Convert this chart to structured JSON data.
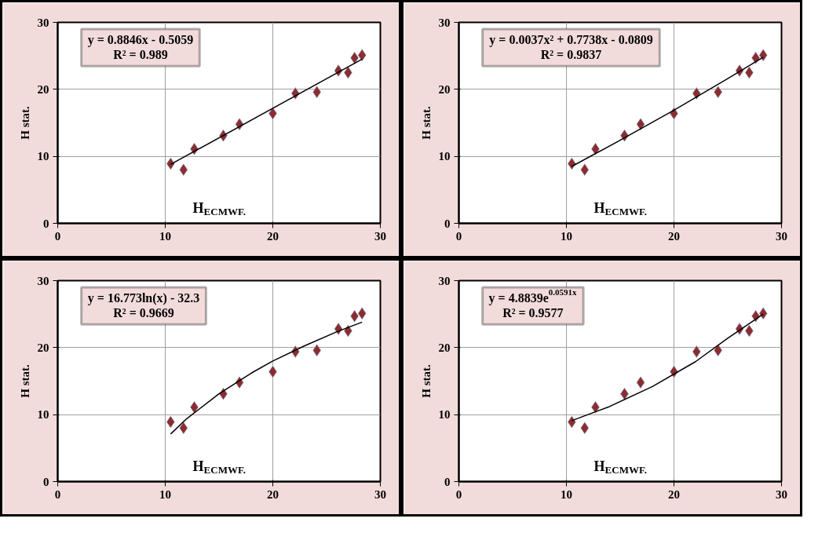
{
  "chart_data": [
    {
      "type": "scatter",
      "xlabel": "H$_{ECMWF.}$",
      "ylabel": "H stat.",
      "xlim": [
        0,
        30
      ],
      "ylim": [
        0,
        30
      ],
      "xticks": [
        0,
        10,
        20,
        30
      ],
      "yticks": [
        0,
        10,
        20,
        30
      ],
      "grid": true,
      "annotations": [
        "y = 0.8846x - 0.5059",
        "R² = 0.989"
      ],
      "series": [
        {
          "marker": "diamond",
          "color": "#8b2d2d",
          "x": [
            10.5,
            11.7,
            12.7,
            15.4,
            16.9,
            20.0,
            22.1,
            24.1,
            26.1,
            27.0,
            27.6,
            28.3
          ],
          "values": [
            8.9,
            8.0,
            11.1,
            13.1,
            14.8,
            16.4,
            19.4,
            19.6,
            22.8,
            22.5,
            24.7,
            25.1
          ]
        },
        {
          "type": "line",
          "color": "#000000",
          "x": [
            10.5,
            28.3
          ],
          "values": [
            8.8,
            24.5
          ]
        }
      ]
    },
    {
      "type": "scatter",
      "xlabel": "H$_{ECMWF.}$",
      "ylabel": "H stat.",
      "xlim": [
        0,
        30
      ],
      "ylim": [
        0,
        30
      ],
      "xticks": [
        0,
        10,
        20,
        30
      ],
      "yticks": [
        0,
        10,
        20,
        30
      ],
      "grid": true,
      "annotations": [
        "y = 0.0037x² + 0.7738x - 0.0809",
        "R² = 0.9837"
      ],
      "series": [
        {
          "marker": "diamond",
          "color": "#8b2d2d",
          "x": [
            10.5,
            11.7,
            12.7,
            15.4,
            16.9,
            20.0,
            22.1,
            24.1,
            26.1,
            27.0,
            27.6,
            28.3
          ],
          "values": [
            8.9,
            8.0,
            11.1,
            13.1,
            14.8,
            16.4,
            19.4,
            19.6,
            22.8,
            22.5,
            24.7,
            25.1
          ]
        },
        {
          "type": "line",
          "color": "#000000",
          "x": [
            10.5,
            15,
            20,
            25,
            28.3
          ],
          "values": [
            8.5,
            12.4,
            16.9,
            21.6,
            24.8
          ]
        }
      ]
    },
    {
      "type": "scatter",
      "xlabel": "H$_{ECMWF.}$",
      "ylabel": "H stat.",
      "xlim": [
        0,
        30
      ],
      "ylim": [
        0,
        30
      ],
      "xticks": [
        0,
        10,
        20,
        30
      ],
      "yticks": [
        0,
        10,
        20,
        30
      ],
      "grid": true,
      "annotations": [
        "y = 16.773ln(x) - 32.3",
        "R² = 0.9669"
      ],
      "series": [
        {
          "marker": "diamond",
          "color": "#8b2d2d",
          "x": [
            10.5,
            11.7,
            12.7,
            15.4,
            16.9,
            20.0,
            22.1,
            24.1,
            26.1,
            27.0,
            27.6,
            28.3
          ],
          "values": [
            8.9,
            8.0,
            11.1,
            13.1,
            14.8,
            16.4,
            19.4,
            19.6,
            22.8,
            22.5,
            24.7,
            25.1
          ]
        },
        {
          "type": "line",
          "color": "#000000",
          "x": [
            10.5,
            12,
            15,
            18,
            20,
            23,
            26,
            28.3
          ],
          "values": [
            7.1,
            9.4,
            13.1,
            16.2,
            18.0,
            20.3,
            22.4,
            23.8
          ]
        }
      ]
    },
    {
      "type": "scatter",
      "xlabel": "H$_{ECMWF.}$",
      "ylabel": "H stat.",
      "xlim": [
        0,
        30
      ],
      "ylim": [
        0,
        30
      ],
      "xticks": [
        0,
        10,
        20,
        30
      ],
      "yticks": [
        0,
        10,
        20,
        30
      ],
      "grid": true,
      "annotations": [
        "y = 4.8839e$^{0.0591x}$",
        "R² = 0.9577"
      ],
      "series": [
        {
          "marker": "diamond",
          "color": "#8b2d2d",
          "x": [
            10.5,
            11.7,
            12.7,
            15.4,
            16.9,
            20.0,
            22.1,
            24.1,
            26.1,
            27.0,
            27.6,
            28.3
          ],
          "values": [
            8.9,
            8.0,
            11.1,
            13.1,
            14.8,
            16.4,
            19.4,
            19.6,
            22.8,
            22.5,
            24.7,
            25.1
          ]
        },
        {
          "type": "line",
          "color": "#000000",
          "x": [
            10.5,
            14,
            18,
            22,
            25,
            28.3
          ],
          "values": [
            9.1,
            11.2,
            14.2,
            17.9,
            21.4,
            25.0
          ]
        }
      ]
    }
  ]
}
